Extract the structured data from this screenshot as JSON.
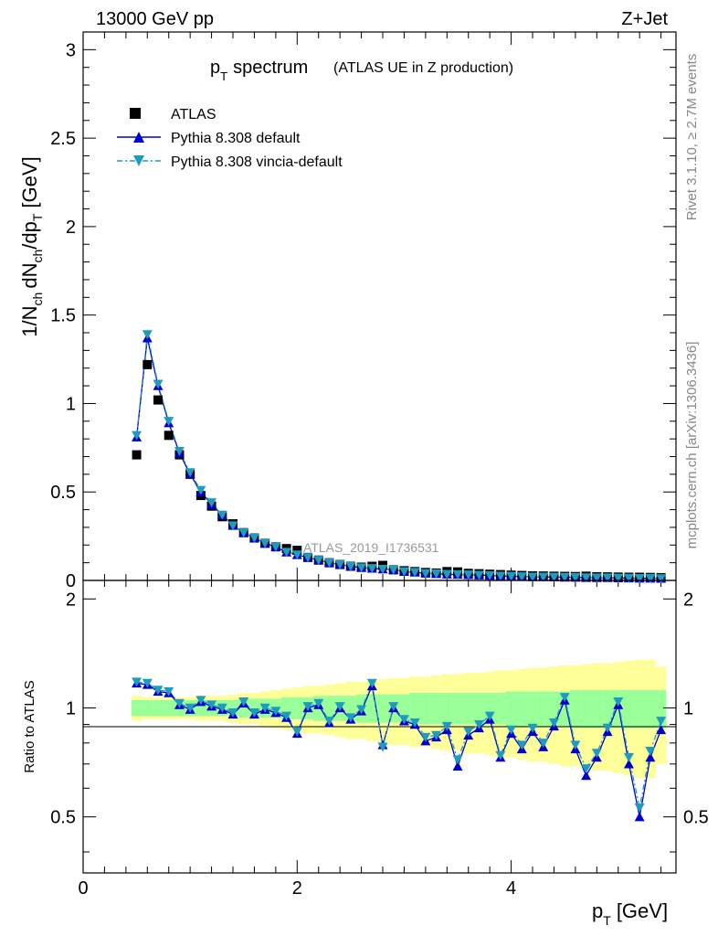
{
  "header": {
    "energy": "13000 GeV pp",
    "process": "Z+Jet"
  },
  "side": {
    "rivet": "Rivet 3.1.10, ≥ 2.7M events",
    "mcplots": "mcplots.cern.ch [arXiv:1306.3436]"
  },
  "analysis_label": "ATLAS_2019_I1736531",
  "chart_data": [
    {
      "type": "scatter",
      "title_main": "p",
      "title_sub": "T",
      "title_word": "spectrum",
      "subtitle": "(ATLAS UE in Z production)",
      "ylabel": {
        "prefix": "1/N",
        "ch": "ch",
        "dN": "dN",
        "dp": "/dp",
        "T": "T",
        "unit": "[GeV]"
      },
      "xlim": [
        0,
        5.5
      ],
      "ylim": [
        0,
        3.1
      ],
      "yticks": [
        0,
        0.5,
        1,
        1.5,
        2,
        2.5,
        3
      ],
      "ytick_labels": [
        "0",
        "0.5",
        "1",
        "1.5",
        "2",
        "2.5",
        "3"
      ],
      "legend_position": "top-left",
      "x": [
        0.5,
        0.6,
        0.7,
        0.8,
        0.9,
        1.0,
        1.1,
        1.2,
        1.3,
        1.4,
        1.5,
        1.6,
        1.7,
        1.8,
        1.9,
        2.0,
        2.1,
        2.2,
        2.3,
        2.4,
        2.5,
        2.6,
        2.7,
        2.8,
        2.9,
        3.0,
        3.1,
        3.2,
        3.3,
        3.4,
        3.5,
        3.6,
        3.7,
        3.8,
        3.9,
        4.0,
        4.1,
        4.2,
        4.3,
        4.4,
        4.5,
        4.6,
        4.7,
        4.8,
        4.9,
        5.0,
        5.1,
        5.2,
        5.3,
        5.4
      ],
      "series": [
        {
          "name": "ATLAS",
          "marker": "square",
          "color": "#000000",
          "values": [
            0.71,
            1.22,
            1.02,
            0.82,
            0.71,
            0.6,
            0.48,
            0.42,
            0.36,
            0.32,
            0.27,
            0.24,
            0.21,
            0.19,
            0.18,
            0.17,
            0.13,
            0.115,
            0.1,
            0.09,
            0.08,
            0.075,
            0.08,
            0.085,
            0.06,
            0.055,
            0.05,
            0.045,
            0.042,
            0.05,
            0.048,
            0.04,
            0.038,
            0.035,
            0.033,
            0.03,
            0.028,
            0.026,
            0.025,
            0.024,
            0.023,
            0.022,
            0.024,
            0.021,
            0.02,
            0.019,
            0.018,
            0.018,
            0.017,
            0.016
          ]
        },
        {
          "name": "Pythia 8.308 default",
          "marker": "triangle-up",
          "color": "#0000cc",
          "values": [
            0.81,
            1.37,
            1.1,
            0.89,
            0.72,
            0.6,
            0.5,
            0.43,
            0.37,
            0.31,
            0.27,
            0.24,
            0.21,
            0.19,
            0.16,
            0.145,
            0.13,
            0.115,
            0.1,
            0.09,
            0.08,
            0.072,
            0.068,
            0.064,
            0.06,
            0.05,
            0.046,
            0.04,
            0.038,
            0.035,
            0.034,
            0.032,
            0.03,
            0.028,
            0.025,
            0.024,
            0.022,
            0.02,
            0.02,
            0.019,
            0.018,
            0.017,
            0.016,
            0.015,
            0.015,
            0.014,
            0.013,
            0.012,
            0.012,
            0.011
          ]
        },
        {
          "name": "Pythia 8.308 vincia-default",
          "marker": "triangle-down",
          "color": "#1e9bbf",
          "values": [
            0.82,
            1.39,
            1.11,
            0.9,
            0.73,
            0.61,
            0.51,
            0.44,
            0.37,
            0.31,
            0.27,
            0.24,
            0.21,
            0.19,
            0.16,
            0.145,
            0.13,
            0.115,
            0.1,
            0.09,
            0.08,
            0.072,
            0.068,
            0.064,
            0.06,
            0.05,
            0.046,
            0.04,
            0.038,
            0.035,
            0.034,
            0.032,
            0.03,
            0.028,
            0.025,
            0.024,
            0.022,
            0.02,
            0.02,
            0.019,
            0.018,
            0.017,
            0.016,
            0.015,
            0.015,
            0.014,
            0.013,
            0.012,
            0.012,
            0.011
          ]
        }
      ]
    },
    {
      "type": "scatter",
      "ylabel": "Ratio to ATLAS",
      "xlabel_main": "p",
      "xlabel_sub": "T",
      "xlabel_unit": "[GeV]",
      "xlim": [
        0,
        5.5
      ],
      "ylim": [
        0.35,
        2.25
      ],
      "ytick_labels": {
        "0.5": "0.5",
        "1": "1",
        "2": "2"
      },
      "xticks": [
        0,
        2,
        4
      ],
      "xtick_labels": [
        "0",
        "2",
        "4"
      ],
      "x": [
        0.5,
        0.6,
        0.7,
        0.8,
        0.9,
        1.0,
        1.1,
        1.2,
        1.3,
        1.4,
        1.5,
        1.6,
        1.7,
        1.8,
        1.9,
        2.0,
        2.1,
        2.2,
        2.3,
        2.4,
        2.5,
        2.6,
        2.7,
        2.8,
        2.9,
        3.0,
        3.1,
        3.2,
        3.3,
        3.4,
        3.5,
        3.6,
        3.7,
        3.8,
        3.9,
        4.0,
        4.1,
        4.2,
        4.3,
        4.4,
        4.5,
        4.6,
        4.7,
        4.8,
        4.9,
        5.0,
        5.1,
        5.2,
        5.3,
        5.4
      ],
      "band_inner": [
        0.05,
        0.05,
        0.05,
        0.05,
        0.05,
        0.05,
        0.05,
        0.05,
        0.05,
        0.05,
        0.06,
        0.06,
        0.06,
        0.06,
        0.07,
        0.07,
        0.07,
        0.08,
        0.08,
        0.08,
        0.08,
        0.09,
        0.09,
        0.09,
        0.09,
        0.09,
        0.1,
        0.1,
        0.1,
        0.1,
        0.1,
        0.1,
        0.1,
        0.1,
        0.1,
        0.11,
        0.11,
        0.11,
        0.11,
        0.11,
        0.11,
        0.12,
        0.12,
        0.12,
        0.12,
        0.12,
        0.12,
        0.12,
        0.12,
        0.12
      ],
      "band_outer": [
        0.08,
        0.07,
        0.07,
        0.07,
        0.07,
        0.07,
        0.08,
        0.08,
        0.08,
        0.09,
        0.1,
        0.1,
        0.11,
        0.12,
        0.13,
        0.14,
        0.15,
        0.15,
        0.16,
        0.17,
        0.18,
        0.18,
        0.19,
        0.2,
        0.21,
        0.21,
        0.22,
        0.22,
        0.23,
        0.24,
        0.24,
        0.25,
        0.25,
        0.26,
        0.27,
        0.27,
        0.28,
        0.29,
        0.29,
        0.3,
        0.31,
        0.31,
        0.32,
        0.33,
        0.33,
        0.34,
        0.35,
        0.36,
        0.36,
        0.3
      ],
      "series": [
        {
          "name": "Pythia 8.308 default",
          "color": "#0000cc",
          "values": [
            1.17,
            1.16,
            1.11,
            1.1,
            1.02,
            0.99,
            1.04,
            1.01,
            0.99,
            0.96,
            1.03,
            0.96,
            0.99,
            0.97,
            0.94,
            0.85,
            1.0,
            1.02,
            0.91,
            1.0,
            0.93,
            0.98,
            1.15,
            0.79,
            1.0,
            0.92,
            0.9,
            0.81,
            0.83,
            0.87,
            0.69,
            0.84,
            0.88,
            0.93,
            0.73,
            0.85,
            0.77,
            0.86,
            0.78,
            0.89,
            1.05,
            0.77,
            0.65,
            0.73,
            0.86,
            1.02,
            0.7,
            0.5,
            0.73,
            0.87
          ]
        },
        {
          "name": "Pythia 8.308 vincia-default",
          "color": "#1e9bbf",
          "values": [
            1.18,
            1.17,
            1.12,
            1.11,
            1.03,
            1.0,
            1.05,
            1.02,
            1.0,
            0.97,
            1.04,
            0.97,
            1.0,
            0.98,
            0.95,
            0.86,
            1.01,
            1.03,
            0.92,
            1.01,
            0.94,
            0.99,
            1.17,
            0.78,
            1.01,
            0.93,
            0.91,
            0.83,
            0.84,
            0.89,
            0.72,
            0.86,
            0.9,
            0.95,
            0.74,
            0.87,
            0.79,
            0.88,
            0.8,
            0.91,
            1.07,
            0.79,
            0.68,
            0.75,
            0.88,
            1.04,
            0.73,
            0.53,
            0.76,
            0.92
          ]
        }
      ]
    }
  ]
}
